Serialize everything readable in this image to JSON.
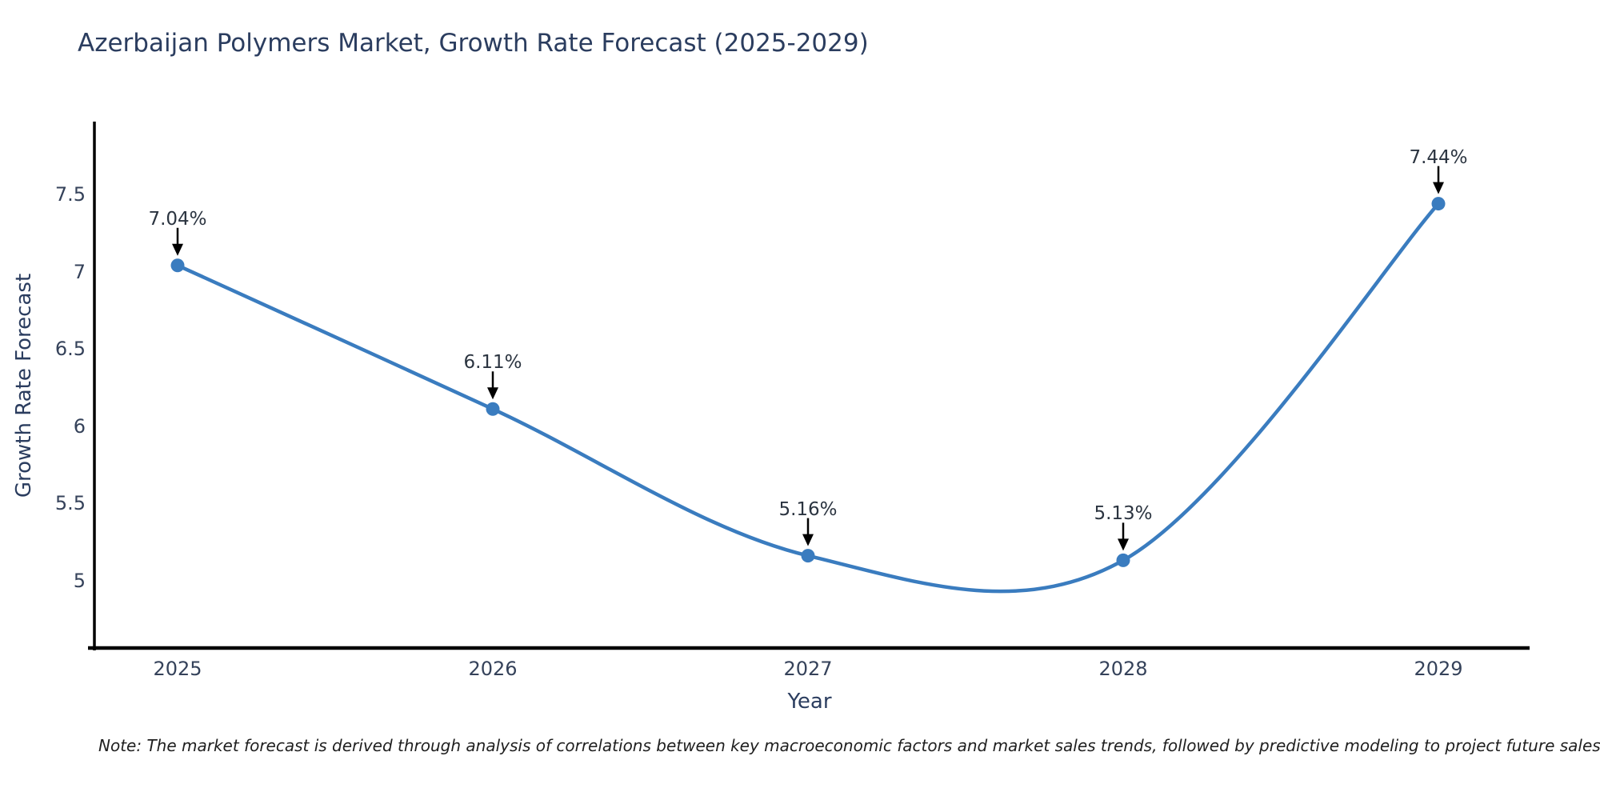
{
  "page": {
    "background": "#ffffff"
  },
  "chart_data": {
    "type": "line",
    "title": "Azerbaijan Polymers Market, Growth Rate Forecast (2025-2029)",
    "xlabel": "Year",
    "ylabel": "Growth Rate Forecast",
    "categories": [
      "2025",
      "2026",
      "2027",
      "2028",
      "2029"
    ],
    "series": [
      {
        "name": "Growth Rate Forecast",
        "values": [
          7.04,
          6.11,
          5.16,
          5.13,
          7.44
        ],
        "point_labels": [
          "7.04%",
          "6.11%",
          "5.16%",
          "5.13%",
          "7.44%"
        ]
      }
    ],
    "ytick_values": [
      7.5,
      7,
      6.5,
      6,
      5.5,
      5
    ],
    "ylim": [
      4.56,
      7.97
    ],
    "line_shape": "spline",
    "markers": true,
    "grid": false,
    "legend_position": "none",
    "annotation_style": "black-down-arrows",
    "colors": {
      "line": "#3a7cbf",
      "marker": "#3a7cbf",
      "axis_line": "#000000",
      "title_text": "#2b3d5f",
      "tick_text": "#35425a",
      "annotation_text": "#2b3440",
      "arrow": "#000000",
      "note_text": "#1f1f1f"
    },
    "note": "Note: The market forecast is derived through analysis of correlations between key macroeconomic factors and market sales trends, followed by predictive modeling to project future sales"
  }
}
